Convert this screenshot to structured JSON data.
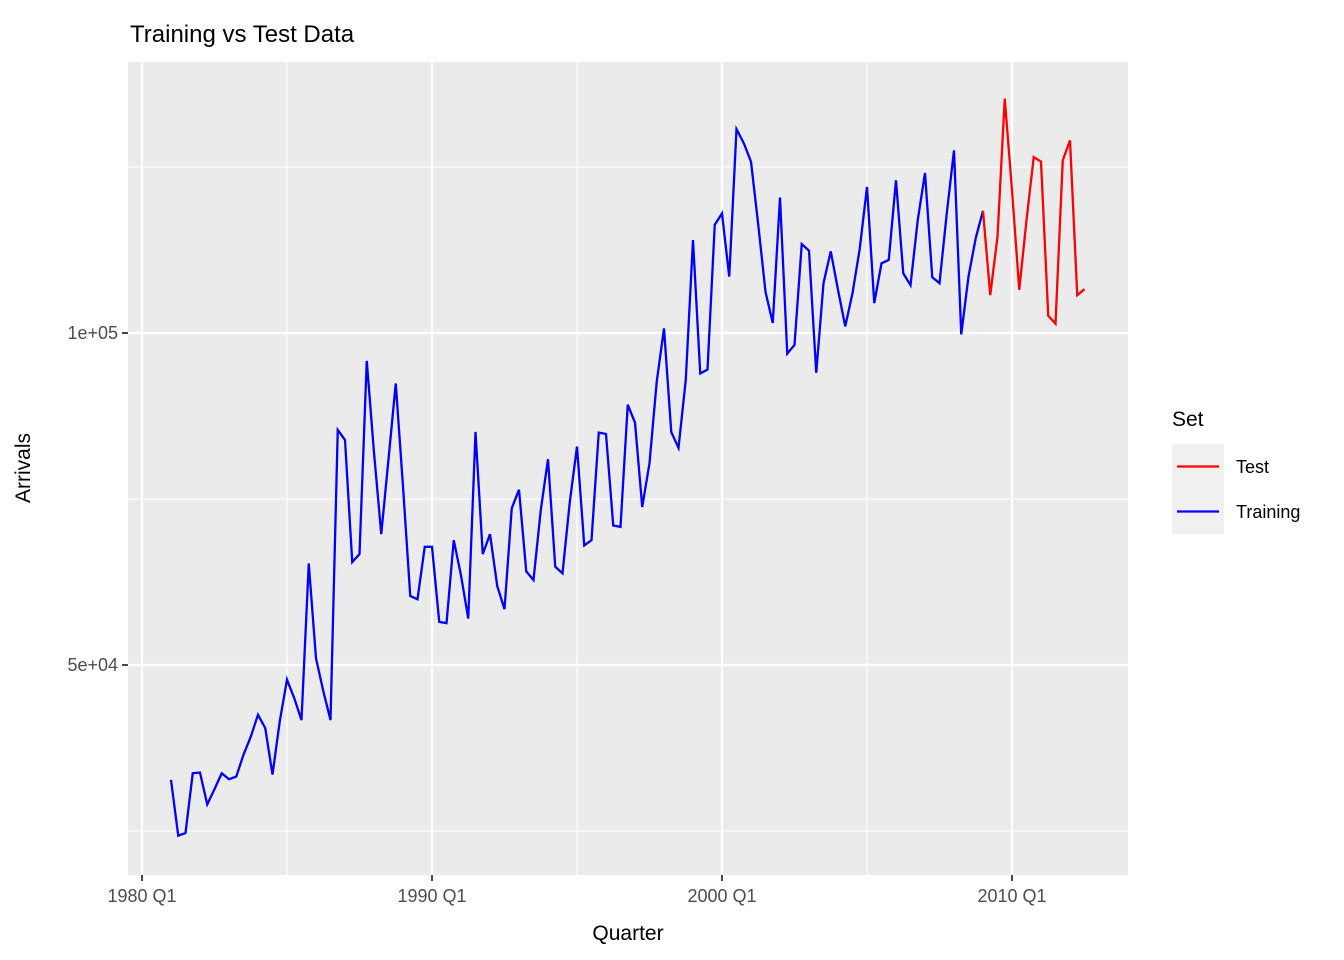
{
  "title": "Training vs Test Data",
  "axes": {
    "x": {
      "title": "Quarter"
    },
    "y": {
      "title": "Arrivals"
    }
  },
  "legend": {
    "title": "Set",
    "items": [
      {
        "label": "Test",
        "color": "#FF0000"
      },
      {
        "label": "Training",
        "color": "#0000FF"
      }
    ]
  },
  "colors": {
    "panel_background": "#EBEBEB",
    "grid": "#FFFFFF",
    "tick_text": "#4D4D4D",
    "tick_mark": "#333333",
    "legend_key_background": "#F0F0F0",
    "test_line": "#FF0000",
    "training_line": "#0000FF"
  },
  "chart_data": {
    "type": "line",
    "title": "Training vs Test Data",
    "xlabel": "Quarter",
    "ylabel": "Arrivals",
    "frequency": "quarterly",
    "grid": "on",
    "legend_position": "right",
    "x_ticks": [
      {
        "label": "1980 Q1",
        "year": 1980
      },
      {
        "label": "1990 Q1",
        "year": 1990
      },
      {
        "label": "2000 Q1",
        "year": 2000
      },
      {
        "label": "2010 Q1",
        "year": 2010
      }
    ],
    "x_minor_years": [
      1985,
      1995,
      2005
    ],
    "y_ticks": [
      {
        "label": "1e+05",
        "value": 100000
      },
      {
        "label": "5e+04",
        "value": 50000
      }
    ],
    "y_minor_values": [
      125000,
      75000,
      25000
    ],
    "ylim": [
      18000,
      141000
    ],
    "quarters": [
      "1981 Q1",
      "1981 Q2",
      "1981 Q3",
      "1981 Q4",
      "1982 Q1",
      "1982 Q2",
      "1982 Q3",
      "1982 Q4",
      "1983 Q1",
      "1983 Q2",
      "1983 Q3",
      "1983 Q4",
      "1984 Q1",
      "1984 Q2",
      "1984 Q3",
      "1984 Q4",
      "1985 Q1",
      "1985 Q2",
      "1985 Q3",
      "1985 Q4",
      "1986 Q1",
      "1986 Q2",
      "1986 Q3",
      "1986 Q4",
      "1987 Q1",
      "1987 Q2",
      "1987 Q3",
      "1987 Q4",
      "1988 Q1",
      "1988 Q2",
      "1988 Q3",
      "1988 Q4",
      "1989 Q1",
      "1989 Q2",
      "1989 Q3",
      "1989 Q4",
      "1990 Q1",
      "1990 Q2",
      "1990 Q3",
      "1990 Q4",
      "1991 Q1",
      "1991 Q2",
      "1991 Q3",
      "1991 Q4",
      "1992 Q1",
      "1992 Q2",
      "1992 Q3",
      "1992 Q4",
      "1993 Q1",
      "1993 Q2",
      "1993 Q3",
      "1993 Q4",
      "1994 Q1",
      "1994 Q2",
      "1994 Q3",
      "1994 Q4",
      "1995 Q1",
      "1995 Q2",
      "1995 Q3",
      "1995 Q4",
      "1996 Q1",
      "1996 Q2",
      "1996 Q3",
      "1996 Q4",
      "1997 Q1",
      "1997 Q2",
      "1997 Q3",
      "1997 Q4",
      "1998 Q1",
      "1998 Q2",
      "1998 Q3",
      "1998 Q4",
      "1999 Q1",
      "1999 Q2",
      "1999 Q3",
      "1999 Q4",
      "2000 Q1",
      "2000 Q2",
      "2000 Q3",
      "2000 Q4",
      "2001 Q1",
      "2001 Q2",
      "2001 Q3",
      "2001 Q4",
      "2002 Q1",
      "2002 Q2",
      "2002 Q3",
      "2002 Q4",
      "2003 Q1",
      "2003 Q2",
      "2003 Q3",
      "2003 Q4",
      "2004 Q1",
      "2004 Q2",
      "2004 Q3",
      "2004 Q4",
      "2005 Q1",
      "2005 Q2",
      "2005 Q3",
      "2005 Q4",
      "2006 Q1",
      "2006 Q2",
      "2006 Q3",
      "2006 Q4",
      "2007 Q1",
      "2007 Q2",
      "2007 Q3",
      "2007 Q4",
      "2008 Q1",
      "2008 Q2",
      "2008 Q3",
      "2008 Q4",
      "2009 Q1",
      "2009 Q2",
      "2009 Q3",
      "2009 Q4",
      "2010 Q1",
      "2010 Q2",
      "2010 Q3",
      "2010 Q4",
      "2011 Q1",
      "2011 Q2",
      "2011 Q3",
      "2011 Q4",
      "2012 Q1",
      "2012 Q2",
      "2012 Q3"
    ],
    "series": [
      {
        "name": "Training",
        "color": "#0000FF",
        "start_quarter": "1981 Q1",
        "values": [
          32700,
          24300,
          24700,
          33700,
          33800,
          29000,
          31300,
          33700,
          32800,
          33200,
          36500,
          39200,
          42500,
          40500,
          33500,
          41500,
          47800,
          45000,
          41700,
          65300,
          51000,
          46100,
          41700,
          85400,
          83900,
          65500,
          66700,
          95800,
          82000,
          69700,
          81000,
          92400,
          76900,
          60400,
          59900,
          67800,
          67800,
          56500,
          56300,
          68800,
          63500,
          57000,
          85100,
          66700,
          69700,
          61900,
          58400,
          73600,
          76400,
          64100,
          62800,
          73300,
          81000,
          64800,
          63800,
          74500,
          82900,
          68000,
          68800,
          85000,
          84800,
          71000,
          70800,
          89200,
          86500,
          73800,
          80400,
          92700,
          100700,
          85100,
          82700,
          92900,
          114000,
          93900,
          94500,
          116300,
          118000,
          108500,
          130700,
          128600,
          125800,
          116300,
          106200,
          101500,
          120400,
          96900,
          98200,
          113400,
          112400,
          94000,
          107500,
          112300,
          106500,
          101000,
          106000,
          112700,
          122000,
          104500,
          110500,
          111000,
          123000,
          109000,
          107200,
          117000,
          124100,
          108400,
          107500,
          118000,
          127500,
          99800,
          108500,
          114300,
          118400
        ]
      },
      {
        "name": "Test",
        "color": "#FF0000",
        "start_quarter": "2009 Q1",
        "values": [
          118400,
          105700,
          114500,
          135300,
          121500,
          106500,
          117000,
          126500,
          125800,
          102600,
          101400,
          126000,
          129000,
          105700,
          106600
        ]
      }
    ]
  }
}
